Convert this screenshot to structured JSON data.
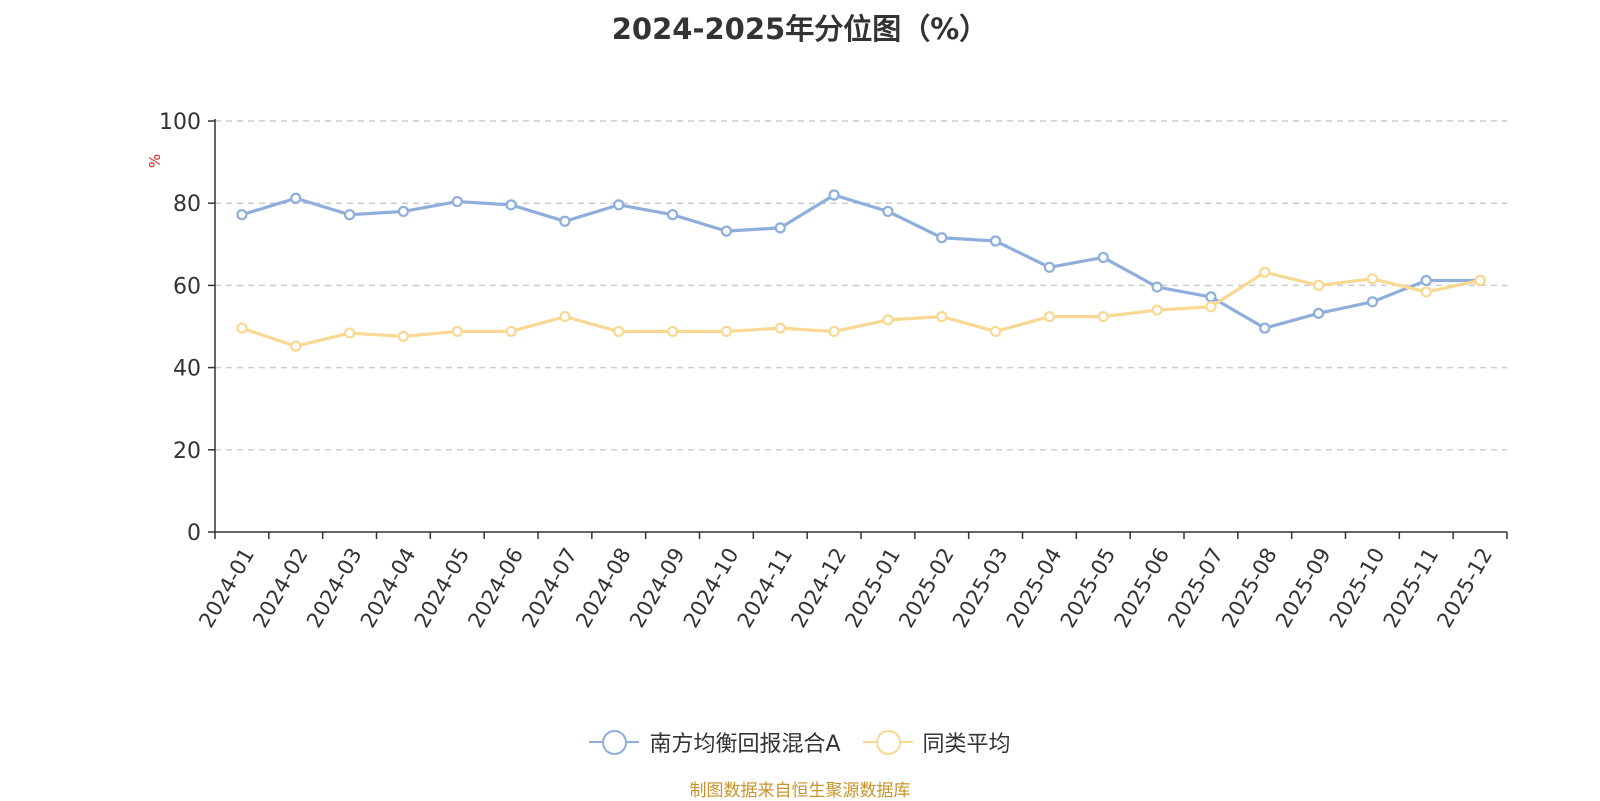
{
  "title": "2024-2025年分位图（%）",
  "source_note": "制图数据来自恒生聚源数据库",
  "chart_data": {
    "type": "line",
    "title": "2024-2025年分位图（%）",
    "ylabel": "%",
    "ylim": [
      0,
      100
    ],
    "yticks": [
      0,
      20,
      40,
      60,
      80,
      100
    ],
    "grid": true,
    "legend_position": "bottom",
    "categories": [
      "2024-01",
      "2024-02",
      "2024-03",
      "2024-04",
      "2024-05",
      "2024-06",
      "2024-07",
      "2024-08",
      "2024-09",
      "2024-10",
      "2024-11",
      "2024-12",
      "2025-01",
      "2025-02",
      "2025-03",
      "2025-04",
      "2025-05",
      "2025-06",
      "2025-07",
      "2025-08",
      "2025-09",
      "2025-10",
      "2025-11",
      "2025-12"
    ],
    "series": [
      {
        "name": "南方均衡回报混合A",
        "color": "#8eaedb",
        "values": [
          77.2,
          81.2,
          77.2,
          78.0,
          80.4,
          79.6,
          75.6,
          79.6,
          77.2,
          73.2,
          74.0,
          82.0,
          78.0,
          71.6,
          70.8,
          64.4,
          66.8,
          59.6,
          57.2,
          49.6,
          53.2,
          56.0,
          61.2,
          61.2
        ]
      },
      {
        "name": "同类平均",
        "color": "#f9d893",
        "values": [
          49.6,
          45.2,
          48.4,
          47.6,
          48.8,
          48.8,
          52.4,
          48.8,
          48.8,
          48.8,
          49.6,
          48.8,
          51.6,
          52.4,
          48.8,
          52.4,
          52.4,
          54.0,
          54.8,
          63.2,
          60.0,
          61.6,
          58.4,
          61.2
        ]
      }
    ]
  }
}
